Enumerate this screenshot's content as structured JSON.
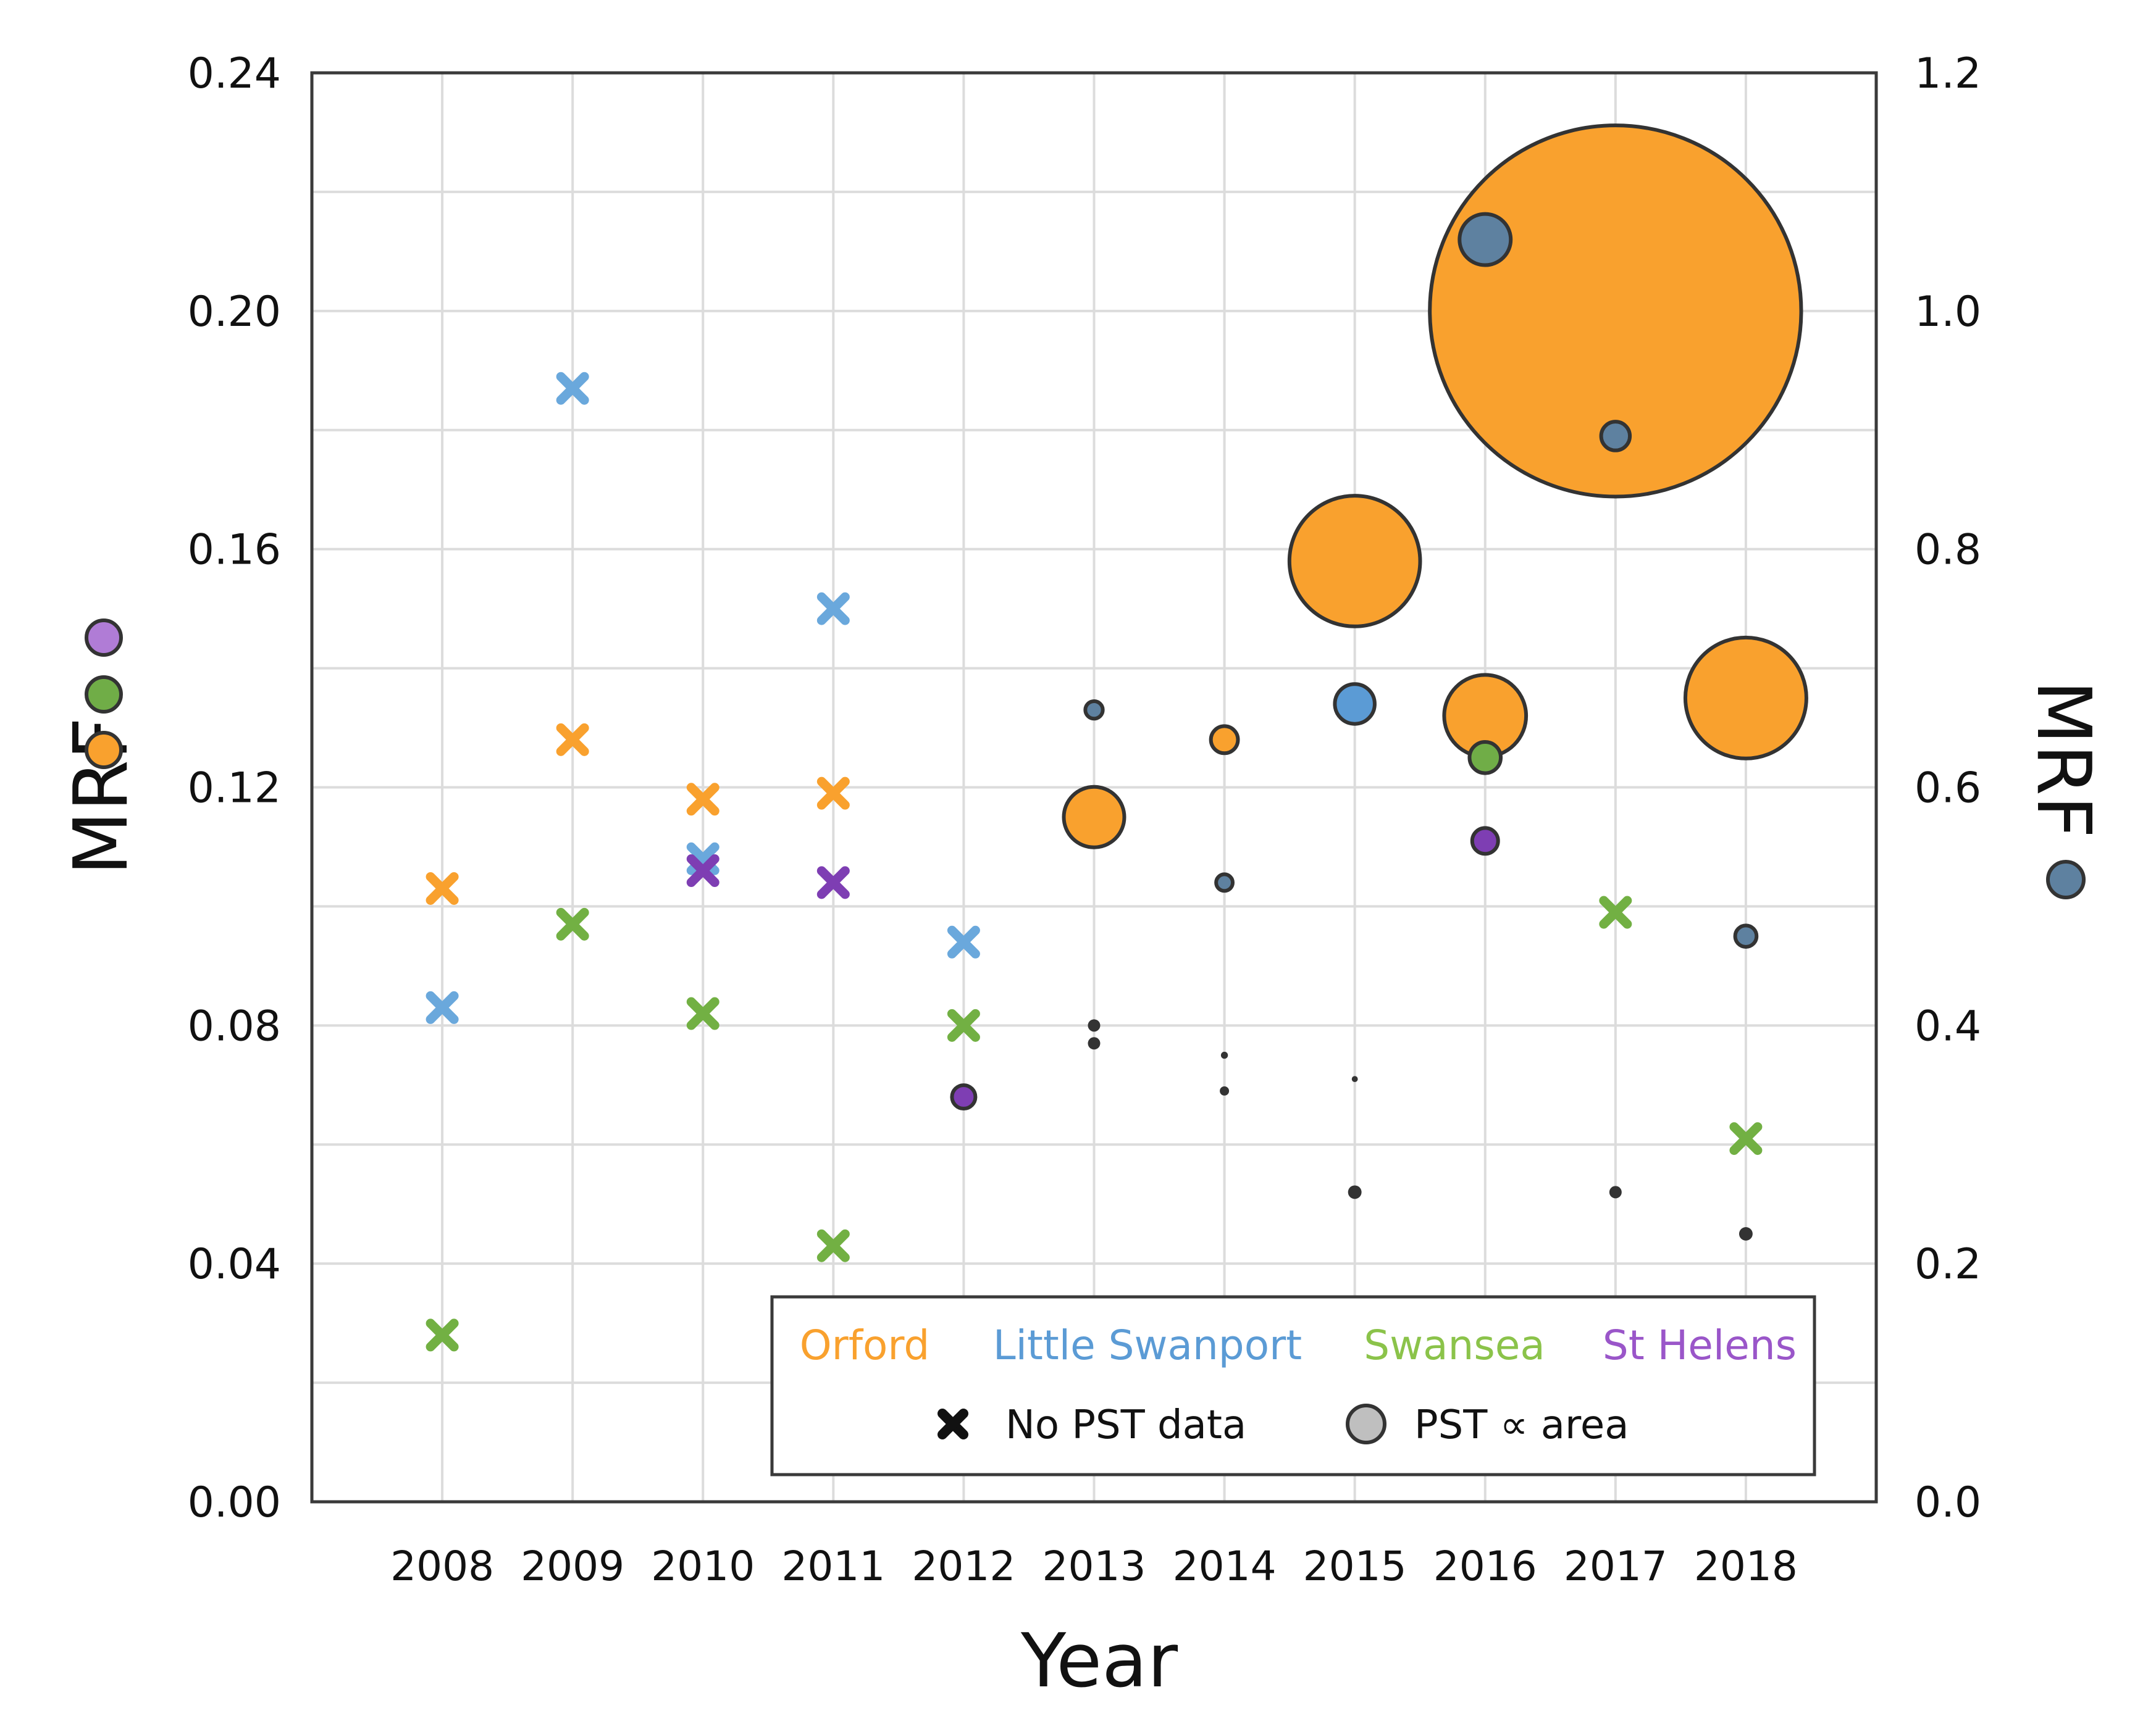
{
  "chart_data": {
    "type": "scatter",
    "xlabel": "Year",
    "ylabel_left": "MRF",
    "ylabel_right": "MRF",
    "x_categories": [
      "2008",
      "2009",
      "2010",
      "2011",
      "2012",
      "2013",
      "2014",
      "2015",
      "2016",
      "2017",
      "2018"
    ],
    "ylim_left": [
      0,
      0.24
    ],
    "ylim_right": [
      0,
      1.2
    ],
    "yticks_left": [
      "0.00",
      "0.04",
      "0.08",
      "0.12",
      "0.16",
      "0.20",
      "0.24"
    ],
    "yticks_right": [
      "0.0",
      "0.2",
      "0.4",
      "0.6",
      "0.8",
      "1.0",
      "1.2"
    ],
    "grid": true,
    "colors": {
      "orford": "#F9A12E",
      "little_swanport": "#5B9BD5",
      "swansea": "#70AD47",
      "st_helens": "#7E3EB3",
      "right_axis": "#5E81A0",
      "dark": "#333333"
    },
    "legend": {
      "position": "bottom-right",
      "series_labels": [
        "Orford",
        "Little Swanport",
        "Swansea",
        "St Helens"
      ],
      "no_pst_label": "No PST data",
      "pst_label": "PST ∝ area"
    },
    "no_pst_points": [
      {
        "series": "orford",
        "year": "2008",
        "mrf": 0.103
      },
      {
        "series": "orford",
        "year": "2009",
        "mrf": 0.128
      },
      {
        "series": "orford",
        "year": "2010",
        "mrf": 0.118
      },
      {
        "series": "orford",
        "year": "2011",
        "mrf": 0.119
      },
      {
        "series": "little_swanport",
        "year": "2008",
        "mrf": 0.083
      },
      {
        "series": "little_swanport",
        "year": "2009",
        "mrf": 0.187
      },
      {
        "series": "little_swanport",
        "year": "2010",
        "mrf": 0.108
      },
      {
        "series": "little_swanport",
        "year": "2011",
        "mrf": 0.15
      },
      {
        "series": "little_swanport",
        "year": "2012",
        "mrf": 0.094
      },
      {
        "series": "swansea",
        "year": "2008",
        "mrf": 0.028
      },
      {
        "series": "swansea",
        "year": "2009",
        "mrf": 0.097
      },
      {
        "series": "swansea",
        "year": "2010",
        "mrf": 0.082
      },
      {
        "series": "swansea",
        "year": "2011",
        "mrf": 0.043
      },
      {
        "series": "swansea",
        "year": "2012",
        "mrf": 0.08
      },
      {
        "series": "swansea",
        "year": "2017",
        "mrf": 0.099
      },
      {
        "series": "swansea",
        "year": "2018",
        "mrf": 0.061
      },
      {
        "series": "st_helens",
        "year": "2010",
        "mrf": 0.106
      },
      {
        "series": "st_helens",
        "year": "2011",
        "mrf": 0.104
      }
    ],
    "pst_points": [
      {
        "series": "orford",
        "year": "2013",
        "mrf": 0.115,
        "pst_area": 6.0
      },
      {
        "series": "orford",
        "year": "2014",
        "mrf": 0.128,
        "pst_area": 1.2
      },
      {
        "series": "orford",
        "year": "2015",
        "mrf": 0.158,
        "pst_area": 28.0
      },
      {
        "series": "orford",
        "year": "2016",
        "mrf": 0.132,
        "pst_area": 11.0
      },
      {
        "series": "orford",
        "year": "2017",
        "mrf": 0.2,
        "pst_area": 226.0
      },
      {
        "series": "orford",
        "year": "2018",
        "mrf": 0.135,
        "pst_area": 24.0
      },
      {
        "series": "little_swanport",
        "year": "2015",
        "mrf": 0.134,
        "pst_area": 2.6
      },
      {
        "series": "swansea",
        "year": "2016",
        "mrf": 0.125,
        "pst_area": 1.6
      },
      {
        "series": "st_helens",
        "year": "2012",
        "mrf": 0.068,
        "pst_area": 0.9
      },
      {
        "series": "st_helens",
        "year": "2016",
        "mrf": 0.111,
        "pst_area": 1.1
      },
      {
        "series": "right_axis",
        "year": "2013",
        "mrf_right": 0.665,
        "pst_area": 0.5
      },
      {
        "series": "right_axis",
        "year": "2014",
        "mrf_right": 0.52,
        "pst_area": 0.45
      },
      {
        "series": "right_axis",
        "year": "2016",
        "mrf_right": 1.06,
        "pst_area": 4.3
      },
      {
        "series": "right_axis",
        "year": "2017",
        "mrf_right": 0.895,
        "pst_area": 1.35
      },
      {
        "series": "right_axis",
        "year": "2018",
        "mrf_right": 0.475,
        "pst_area": 0.75
      },
      {
        "series": "dark",
        "year": "2013",
        "mrf": 0.08,
        "pst_area": 0.25
      },
      {
        "series": "dark",
        "year": "2013",
        "mrf": 0.077,
        "pst_area": 0.25
      },
      {
        "series": "dark",
        "year": "2014",
        "mrf": 0.075,
        "pst_area": 0.08
      },
      {
        "series": "dark",
        "year": "2014",
        "mrf": 0.069,
        "pst_area": 0.14
      },
      {
        "series": "dark",
        "year": "2015",
        "mrf": 0.071,
        "pst_area": 0.06
      },
      {
        "series": "dark",
        "year": "2015",
        "mrf": 0.052,
        "pst_area": 0.3
      },
      {
        "series": "dark",
        "year": "2017",
        "mrf": 0.052,
        "pst_area": 0.25
      },
      {
        "series": "dark",
        "year": "2018",
        "mrf": 0.045,
        "pst_area": 0.3
      }
    ]
  }
}
